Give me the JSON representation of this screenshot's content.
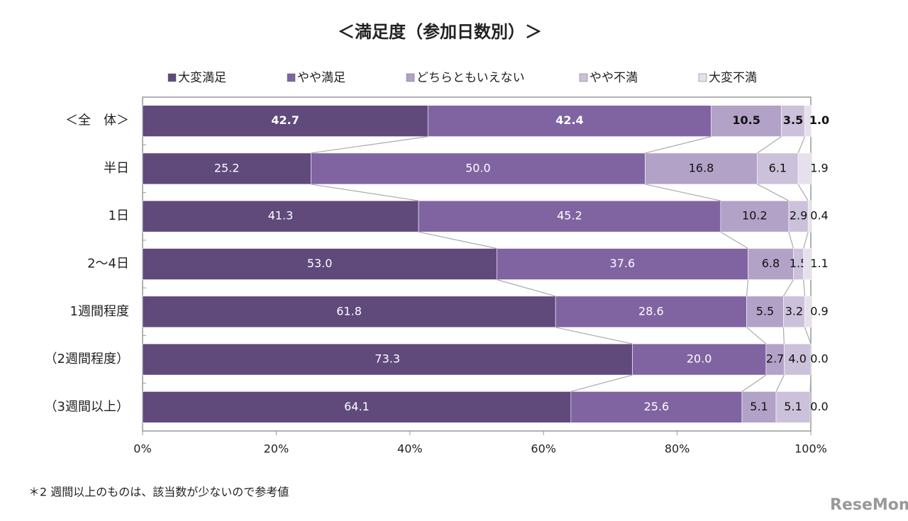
{
  "chart_data": {
    "type": "stacked_barh",
    "title": "＜満足度（参加日数別）＞",
    "categories": [
      "＜全　体＞",
      "半日",
      "1日",
      "2～4日",
      "1週間程度",
      "（2週間程度）",
      "（3週間以上）"
    ],
    "series": [
      {
        "name": "大変満足",
        "color": "#5f4a7b",
        "values": [
          42.7,
          25.2,
          41.3,
          53.0,
          61.8,
          73.3,
          64.1
        ],
        "value_labels": [
          "42.7",
          "25.2",
          "41.3",
          "53.0",
          "61.8",
          "73.3",
          "64.1"
        ]
      },
      {
        "name": "やや満足",
        "color": "#8064a2",
        "values": [
          42.4,
          50.0,
          45.2,
          37.6,
          28.6,
          20.0,
          25.6
        ],
        "value_labels": [
          "42.4",
          "50.0",
          "45.2",
          "37.6",
          "28.6",
          "20.0",
          "25.6"
        ]
      },
      {
        "name": "どちらともいえない",
        "color": "#b3a2c7",
        "values": [
          10.5,
          16.8,
          10.2,
          6.8,
          5.5,
          2.7,
          5.1
        ],
        "value_labels": [
          "10.5",
          "16.8",
          "10.2",
          "6.8",
          "5.5",
          "2.7",
          "5.1"
        ]
      },
      {
        "name": "やや不満",
        "color": "#ccc1da",
        "values": [
          3.5,
          6.1,
          2.9,
          1.5,
          3.2,
          4.0,
          5.1
        ],
        "value_labels": [
          "3.5",
          "6.1",
          "2.9",
          "1.5",
          "3.2",
          "4.0",
          "5.1"
        ]
      },
      {
        "name": "大変不満",
        "color": "#e6e0ec",
        "values": [
          1.0,
          1.9,
          0.4,
          1.1,
          0.9,
          0.0,
          0.0
        ],
        "value_labels": [
          "1.0",
          "1.9",
          "0.4",
          "1.1",
          "0.9",
          "0.0",
          "0.0"
        ]
      }
    ],
    "xlim": [
      0,
      100
    ],
    "xticks": [
      {
        "value": 0,
        "label": "0%"
      },
      {
        "value": 20,
        "label": "20%"
      },
      {
        "value": 40,
        "label": "40%"
      },
      {
        "value": 60,
        "label": "60%"
      },
      {
        "value": 80,
        "label": "80%"
      },
      {
        "value": 100,
        "label": "100%"
      }
    ],
    "legend": "top",
    "footnote": "＊2 週間以上のものは、該当数が少ないので参考値",
    "watermark": "ReseMom"
  }
}
